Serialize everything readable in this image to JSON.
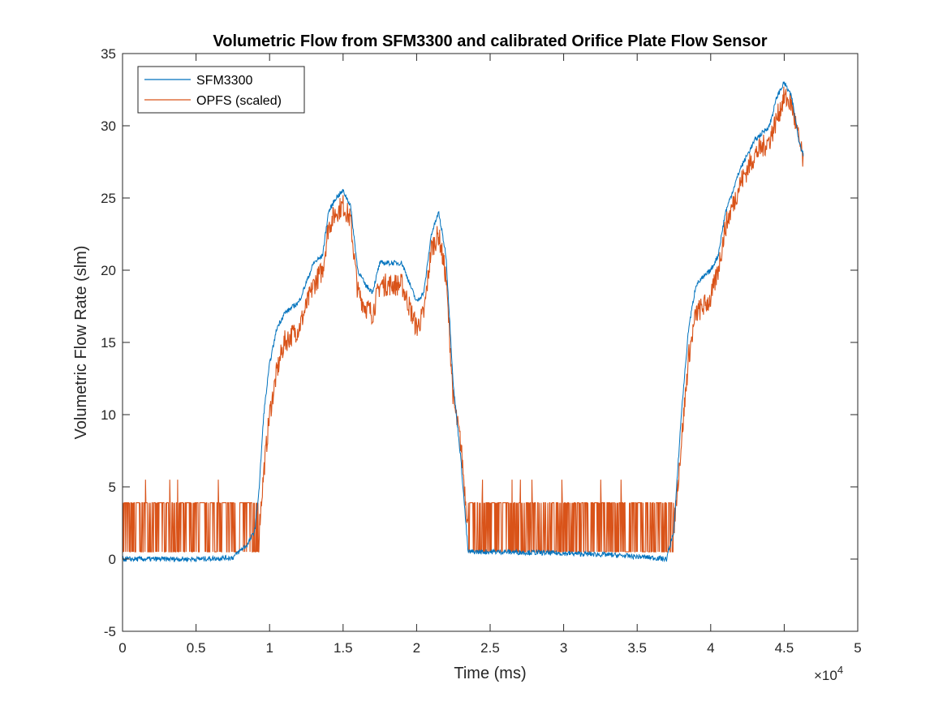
{
  "chart_data": {
    "type": "line",
    "title": "Volumetric Flow from SFM3300 and calibrated Orifice Plate Flow Sensor",
    "xlabel": "Time (ms)",
    "ylabel": "Volumetric Flow Rate (slm)",
    "x_exponent_label": "×10",
    "x_exponent_power": "4",
    "xlim": [
      0,
      50000
    ],
    "ylim": [
      -5,
      35
    ],
    "xticks": [
      0,
      5000,
      10000,
      15000,
      20000,
      25000,
      30000,
      35000,
      40000,
      45000,
      50000
    ],
    "xtick_labels": [
      "0",
      "0.5",
      "1",
      "1.5",
      "2",
      "2.5",
      "3",
      "3.5",
      "4",
      "4.5",
      "5"
    ],
    "yticks": [
      -5,
      0,
      5,
      10,
      15,
      20,
      25,
      30,
      35
    ],
    "ytick_labels": [
      "-5",
      "0",
      "5",
      "10",
      "15",
      "20",
      "25",
      "30",
      "35"
    ],
    "grid": false,
    "legend_position": "top-left",
    "series": [
      {
        "name": "SFM3300",
        "color": "#0072BD",
        "x": [
          0,
          2000,
          5000,
          7500,
          8000,
          8500,
          9000,
          9300,
          9600,
          10000,
          10500,
          11000,
          12000,
          13000,
          13600,
          14000,
          14500,
          15000,
          15500,
          16000,
          16500,
          17000,
          17500,
          18000,
          19000,
          20000,
          20500,
          21000,
          21500,
          22000,
          22500,
          23000,
          23500,
          24000,
          26000,
          30000,
          33000,
          36000,
          37000,
          37500,
          38000,
          38500,
          39000,
          40000,
          40500,
          41000,
          42000,
          43000,
          44000,
          44500,
          45000,
          45500,
          46000,
          46300
        ],
        "y": [
          0.0,
          0.0,
          0.0,
          0.1,
          0.6,
          1.0,
          2.0,
          5.0,
          10.0,
          13.5,
          16.0,
          17.0,
          17.8,
          20.5,
          21.0,
          24.0,
          25.0,
          25.5,
          24.5,
          20.0,
          19.0,
          18.5,
          20.5,
          20.5,
          20.5,
          17.8,
          18.5,
          22.5,
          24.0,
          21.0,
          12.0,
          7.0,
          0.5,
          0.5,
          0.5,
          0.4,
          0.3,
          0.1,
          0.0,
          2.0,
          10.0,
          16.0,
          19.0,
          20.0,
          21.0,
          24.0,
          27.0,
          29.0,
          30.0,
          32.0,
          33.0,
          32.0,
          29.0,
          28.0
        ]
      },
      {
        "name": "OPFS (scaled)",
        "color": "#D95319",
        "x": [
          0,
          9300,
          9600,
          10000,
          10500,
          11000,
          12000,
          13000,
          13600,
          14000,
          14500,
          15000,
          15500,
          16000,
          16500,
          17000,
          17500,
          18000,
          19000,
          20000,
          20500,
          21000,
          21500,
          22000,
          22500,
          23000,
          23500,
          37500,
          38000,
          38500,
          39000,
          40000,
          40500,
          41000,
          42000,
          43000,
          44000,
          44500,
          45000,
          45500,
          46000,
          46300
        ],
        "y": [
          2.2,
          2.2,
          6.0,
          10.0,
          13.0,
          15.0,
          16.0,
          19.0,
          20.0,
          23.0,
          24.0,
          24.5,
          23.5,
          18.5,
          17.5,
          17.0,
          19.0,
          19.0,
          19.0,
          16.0,
          17.0,
          21.5,
          22.5,
          19.5,
          11.0,
          8.0,
          2.2,
          2.2,
          8.0,
          14.0,
          17.0,
          18.0,
          20.0,
          23.0,
          26.0,
          28.0,
          29.0,
          30.5,
          32.0,
          31.5,
          29.0,
          27.5
        ]
      }
    ]
  }
}
